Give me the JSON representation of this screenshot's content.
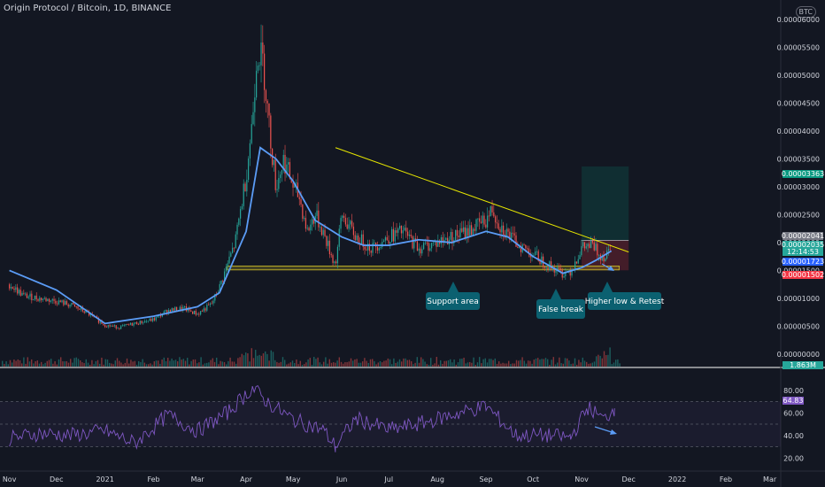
{
  "header": {
    "title": "Origin Protocol / Bitcoin, 1D, BINANCE",
    "currency_badge": "BTC"
  },
  "chart_data": [
    {
      "type": "candlestick",
      "title": "Origin Protocol / Bitcoin, 1D, BINANCE",
      "x_ticks": [
        "Nov",
        "Dec",
        "2021",
        "Feb",
        "Mar",
        "Apr",
        "May",
        "Jun",
        "Jul",
        "Aug",
        "Sep",
        "Oct",
        "Nov",
        "Dec",
        "2022",
        "Feb",
        "Mar"
      ],
      "y_ticks": [
        "0.00006000",
        "0.00005500",
        "0.00005000",
        "0.00004500",
        "0.00004000",
        "0.00003500",
        "0.00003000",
        "0.00002500",
        "0.00002000",
        "0.00001500",
        "0.00001000",
        "0.00000500",
        "0.00000000"
      ],
      "ylim": [
        0,
        6.25e-05
      ],
      "grid": false,
      "series": [
        {
          "kind": "close-approx",
          "x": [
            "2020-11-01",
            "2020-11-10",
            "2020-11-20",
            "2020-12-01",
            "2020-12-10",
            "2020-12-20",
            "2021-01-01",
            "2021-01-10",
            "2021-01-20",
            "2021-02-01",
            "2021-02-10",
            "2021-02-20",
            "2021-03-01",
            "2021-03-10",
            "2021-03-15",
            "2021-03-20",
            "2021-03-25",
            "2021-04-01",
            "2021-04-05",
            "2021-04-08",
            "2021-04-12",
            "2021-04-16",
            "2021-04-20",
            "2021-04-25",
            "2021-05-01",
            "2021-05-05",
            "2021-05-10",
            "2021-05-15",
            "2021-05-20",
            "2021-05-25",
            "2021-05-28",
            "2021-06-01",
            "2021-06-10",
            "2021-06-20",
            "2021-07-01",
            "2021-07-10",
            "2021-07-20",
            "2021-08-01",
            "2021-08-10",
            "2021-08-20",
            "2021-09-01",
            "2021-09-05",
            "2021-09-10",
            "2021-09-20",
            "2021-10-01",
            "2021-10-10",
            "2021-10-20",
            "2021-10-25",
            "2021-11-01",
            "2021-11-08",
            "2021-11-12",
            "2021-11-16",
            "2021-11-20"
          ],
          "y": [
            1.25e-05,
            1.05e-05,
            1e-05,
            9.5e-06,
            8.8e-06,
            7.5e-06,
            5.2e-06,
            4.8e-06,
            5.5e-06,
            6.2e-06,
            7.8e-06,
            8.2e-06,
            7.2e-06,
            9e-06,
            1.2e-05,
            1.6e-05,
            2e-05,
            3.2e-05,
            4.2e-05,
            5.5e-05,
            5.2e-05,
            4e-05,
            3e-05,
            3.5e-05,
            3e-05,
            2.8e-05,
            2.2e-05,
            2.5e-05,
            2.2e-05,
            1.8e-05,
            1.6e-05,
            2.5e-05,
            2.1e-05,
            1.9e-05,
            2.1e-05,
            2.2e-05,
            1.9e-05,
            2e-05,
            2.1e-05,
            2.2e-05,
            2.4e-05,
            2.6e-05,
            2.3e-05,
            2e-05,
            1.8e-05,
            1.6e-05,
            1.45e-05,
            1.5e-05,
            1.9e-05,
            1.95e-05,
            1.8e-05,
            1.75e-05,
            2.05e-05
          ]
        },
        {
          "kind": "moving-average",
          "color": "#5b9cf6",
          "x": [
            "2020-11-01",
            "2020-12-01",
            "2021-01-01",
            "2021-02-01",
            "2021-03-01",
            "2021-03-15",
            "2021-04-01",
            "2021-04-10",
            "2021-04-20",
            "2021-05-01",
            "2021-05-15",
            "2021-06-01",
            "2021-06-15",
            "2021-07-01",
            "2021-07-20",
            "2021-08-10",
            "2021-09-01",
            "2021-09-15",
            "2021-10-01",
            "2021-10-20",
            "2021-11-01",
            "2021-11-10",
            "2021-11-20"
          ],
          "y": [
            1.5e-05,
            1.15e-05,
            5.5e-06,
            6.8e-06,
            8.5e-06,
            1.1e-05,
            2.2e-05,
            3.7e-05,
            3.5e-05,
            3.1e-05,
            2.4e-05,
            2.1e-05,
            1.95e-05,
            1.95e-05,
            2.05e-05,
            2e-05,
            2.2e-05,
            2.1e-05,
            1.75e-05,
            1.45e-05,
            1.55e-05,
            1.68e-05,
            1.85e-05
          ]
        }
      ],
      "trendline": {
        "x": [
          "2021-05-28",
          "2021-12-01"
        ],
        "y": [
          3.7e-05,
          1.83e-05
        ],
        "color": "#e6e600"
      },
      "support_zone": {
        "x": [
          "2021-03-20",
          "2021-11-25"
        ],
        "y": [
          1.51e-05,
          1.58e-05
        ],
        "color": "#9d8f1f"
      },
      "position_box": {
        "x": [
          "2021-11-01",
          "2021-12-01"
        ],
        "entry": 2.04e-05,
        "target": 3.363e-05,
        "stop": 1.502e-05
      },
      "price_labels": [
        {
          "text": "0.00003363",
          "color": "#089981"
        },
        {
          "text": "0.00002041",
          "color": "#787b86"
        },
        {
          "text": "0.00002035",
          "color": "#26a69a"
        },
        {
          "text": "12:14:53",
          "color": "#26a69a"
        },
        {
          "text": "0.00001723",
          "color": "#2962ff"
        },
        {
          "text": "0.00001502",
          "color": "#f23645"
        }
      ],
      "annotations": [
        "Support area",
        "False break",
        "Higher low & Retest"
      ],
      "volume_label": "1.863M"
    },
    {
      "type": "line",
      "series": [
        {
          "kind": "rsi",
          "color": "#7e57c2",
          "x": [
            "2020-11-01",
            "2020-11-20",
            "2020-12-10",
            "2021-01-01",
            "2021-01-20",
            "2021-02-10",
            "2021-03-01",
            "2021-03-20",
            "2021-04-05",
            "2021-04-15",
            "2021-05-01",
            "2021-05-20",
            "2021-05-28",
            "2021-06-10",
            "2021-07-01",
            "2021-07-20",
            "2021-08-10",
            "2021-09-01",
            "2021-09-20",
            "2021-10-10",
            "2021-10-25",
            "2021-11-05",
            "2021-11-15",
            "2021-11-22"
          ],
          "y": [
            37,
            42,
            40,
            44,
            33,
            58,
            44,
            60,
            82,
            69,
            54,
            45,
            30,
            55,
            45,
            50,
            58,
            66,
            40,
            40,
            38,
            65,
            54,
            64
          ]
        }
      ],
      "y_ticks": [
        "80.00",
        "60.00",
        "40.00",
        "20.00"
      ],
      "ylim": [
        10,
        90
      ],
      "levels": [
        70,
        50,
        30
      ],
      "value_label": "64.83"
    }
  ]
}
